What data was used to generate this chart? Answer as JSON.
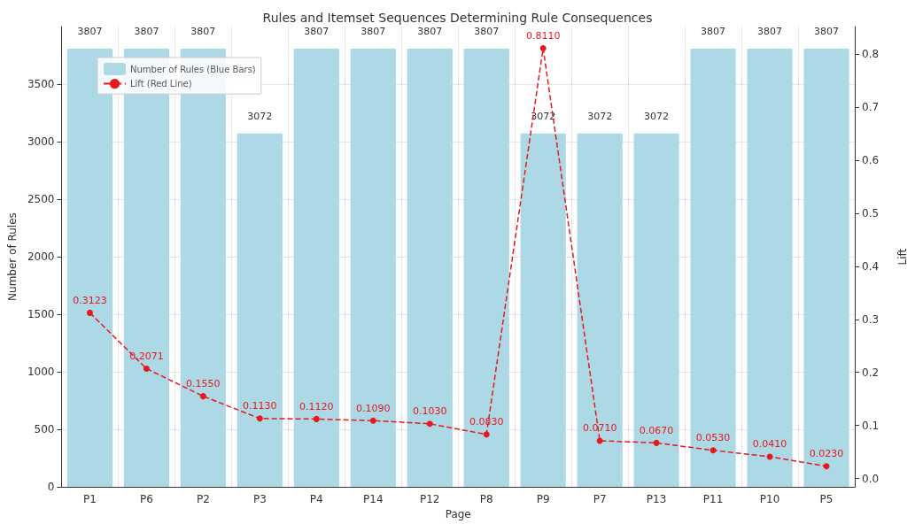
{
  "chart_data": {
    "type": "bar",
    "title": "Rules and Itemset Sequences Determining Rule Consequences",
    "xlabel": "Page",
    "ylabel": "Number of Rules",
    "y2label": "Lift",
    "categories": [
      "P1",
      "P6",
      "P2",
      "P3",
      "P4",
      "P14",
      "P12",
      "P8",
      "P9",
      "P7",
      "P13",
      "P11",
      "P10",
      "P5"
    ],
    "series": [
      {
        "name": "Number of Rules (Blue Bars)",
        "color": "#add8e6",
        "values": [
          3807,
          3807,
          3807,
          3072,
          3807,
          3807,
          3807,
          3807,
          3072,
          3072,
          3072,
          3807,
          3807,
          3807
        ],
        "value_labels": [
          "3807",
          "3807",
          "3807",
          "3072",
          "3807",
          "3807",
          "3807",
          "3807",
          "3072",
          "3072",
          "3072",
          "3807",
          "3807",
          "3807"
        ]
      },
      {
        "name": "Lift (Red Line)",
        "type": "line",
        "axis": "y2",
        "color": "#e41a1c",
        "line_style": "dashed",
        "marker": "circle",
        "values": [
          0.3123,
          0.2071,
          0.155,
          0.113,
          0.112,
          0.109,
          0.103,
          0.083,
          0.811,
          0.071,
          0.067,
          0.053,
          0.041,
          0.023
        ],
        "value_labels": [
          "0.3123",
          "0.2071",
          "0.1550",
          "0.1130",
          "0.1120",
          "0.1090",
          "0.1030",
          "0.0830",
          "0.8110",
          "0.0710",
          "0.0670",
          "0.0530",
          "0.0410",
          "0.0230"
        ]
      }
    ],
    "ylim": [
      0,
      4000
    ],
    "yticks": [
      0,
      500,
      1000,
      1500,
      2000,
      2500,
      3000,
      3500
    ],
    "y2lim": [
      -0.016,
      0.852
    ],
    "y2ticks": [
      {
        "value": 0,
        "label": "0.0"
      },
      {
        "value": 0.1,
        "label": "0.1"
      },
      {
        "value": 0.2,
        "label": "0.2"
      },
      {
        "value": 0.3,
        "label": "0.3"
      },
      {
        "value": 0.4,
        "label": "0.4"
      },
      {
        "value": 0.5,
        "label": "0.5"
      },
      {
        "value": 0.6,
        "label": "0.6"
      },
      {
        "value": 0.7,
        "label": "0.7"
      },
      {
        "value": 0.8,
        "label": "0.8"
      }
    ],
    "grid": true,
    "legend": "top left"
  }
}
